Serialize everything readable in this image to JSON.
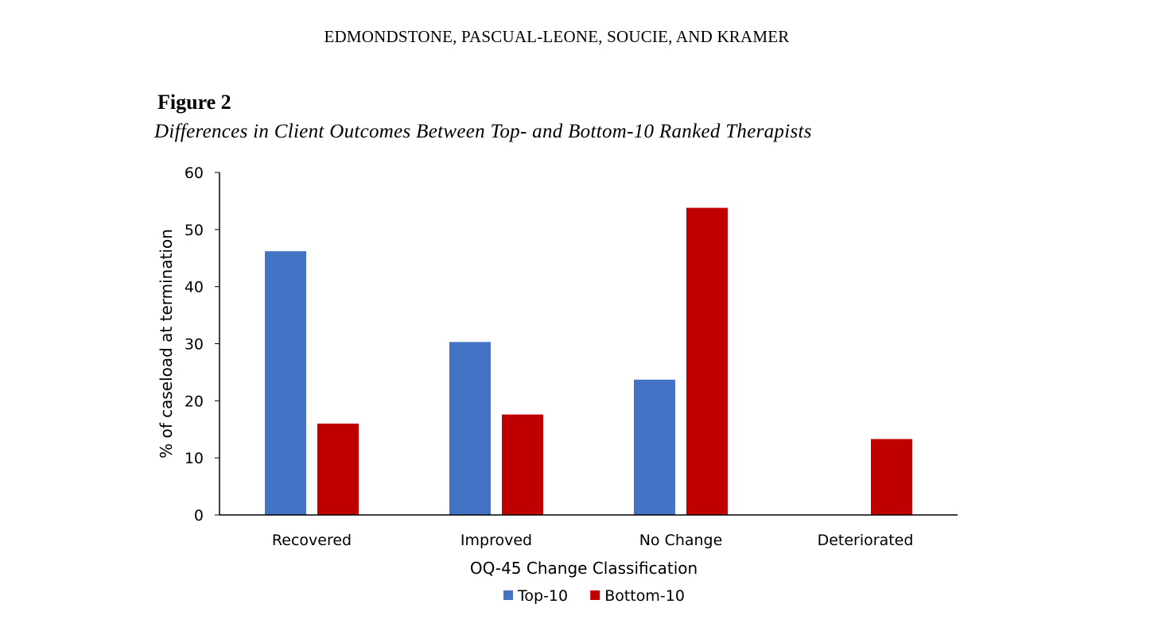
{
  "page": {
    "running_head": "EDMONDSTONE, PASCUAL-LEONE, SOUCIE, AND KRAMER",
    "figure_label": "Figure 2",
    "figure_caption": "Differences in Client Outcomes Between Top- and Bottom-10 Ranked Therapists"
  },
  "chart_data": {
    "type": "bar",
    "categories": [
      "Recovered",
      "Improved",
      "No Change",
      "Deteriorated"
    ],
    "series": [
      {
        "name": "Top-10",
        "values": [
          46.2,
          30.3,
          23.7,
          0
        ],
        "color": "#4472C4"
      },
      {
        "name": "Bottom-10",
        "values": [
          16.0,
          17.6,
          53.8,
          13.3
        ],
        "color": "#C00000"
      }
    ],
    "xlabel": "OQ-45 Change Classification",
    "ylabel": "% of caseload at termination",
    "ylim": [
      0,
      60
    ],
    "yticks": [
      0,
      10,
      20,
      30,
      40,
      50,
      60
    ],
    "grid": false,
    "legend": "bottom-center"
  }
}
